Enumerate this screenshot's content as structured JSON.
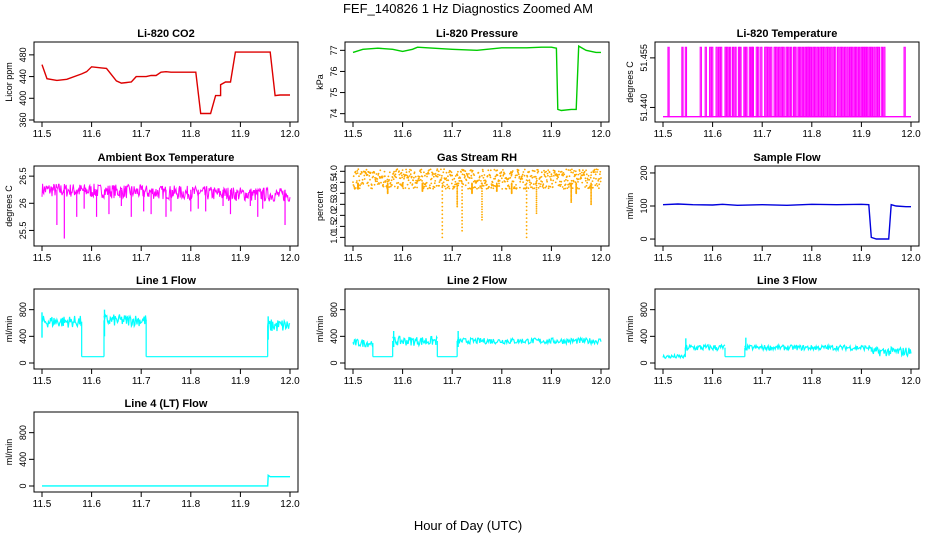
{
  "title": "FEF_140826  1 Hz Diagnostics Zoomed AM",
  "xlabel": "Hour of Day (UTC)",
  "chart_data": [
    {
      "type": "line",
      "title": "Li-820 CO2",
      "ylabel": "Licor ppm",
      "xlim": [
        11.5,
        12.0
      ],
      "ylim": [
        360,
        500
      ],
      "xticks": [
        "11.5",
        "11.6",
        "11.7",
        "11.8",
        "11.9",
        "12.0"
      ],
      "yticks": [
        "360",
        "400",
        "440",
        "480"
      ],
      "color": "#dd0000",
      "series": [
        {
          "x": [
            11.5,
            11.51,
            11.53,
            11.55,
            11.58,
            11.59,
            11.6,
            11.62,
            11.63,
            11.65,
            11.66,
            11.68,
            11.69,
            11.71,
            11.72,
            11.73,
            11.74,
            11.75,
            11.76,
            11.77,
            11.78,
            11.81,
            11.82,
            11.83,
            11.84,
            11.85,
            11.86,
            11.86,
            11.87,
            11.88,
            11.89,
            11.9,
            11.93,
            11.95,
            11.96,
            11.97,
            11.98,
            12.0
          ],
          "y": [
            462,
            436,
            433,
            435,
            445,
            449,
            458,
            456,
            455,
            432,
            428,
            430,
            440,
            440,
            442,
            442,
            448,
            449,
            448,
            448,
            448,
            448,
            372,
            372,
            372,
            405,
            405,
            425,
            430,
            430,
            485,
            485,
            485,
            485,
            485,
            405,
            406,
            406
          ]
        }
      ]
    },
    {
      "type": "line",
      "title": "Li-820 Pressure",
      "ylabel": "kPa",
      "xlim": [
        11.5,
        12.0
      ],
      "ylim": [
        73.7,
        77.3
      ],
      "xticks": [
        "11.5",
        "11.6",
        "11.7",
        "11.8",
        "11.9",
        "12.0"
      ],
      "yticks": [
        "74",
        "75",
        "76",
        "77"
      ],
      "color": "#00cc00",
      "series": [
        {
          "x": [
            11.5,
            11.52,
            11.55,
            11.58,
            11.6,
            11.62,
            11.63,
            11.65,
            11.7,
            11.75,
            11.8,
            11.85,
            11.88,
            11.9,
            11.91,
            11.913,
            11.92,
            11.94,
            11.95,
            11.955,
            11.97,
            11.99,
            12.0
          ],
          "y": [
            76.9,
            77.05,
            77.1,
            77.05,
            76.95,
            77.05,
            77.15,
            77.12,
            77.05,
            77.0,
            77.12,
            77.12,
            77.15,
            77.15,
            77.1,
            74.2,
            74.15,
            74.2,
            74.2,
            77.2,
            77.0,
            76.9,
            76.9
          ]
        }
      ]
    },
    {
      "type": "line",
      "title": "Li-820 Temperature",
      "ylabel": "degrees C",
      "xlim": [
        11.5,
        12.0
      ],
      "ylim": [
        51.4362,
        51.4592
      ],
      "xticks": [
        "11.5",
        "11.6",
        "11.7",
        "11.8",
        "11.9",
        "12.0"
      ],
      "yticks": [
        "51.440",
        "51.455"
      ],
      "color": "#ff00ff",
      "low": 51.4372,
      "high": 51.4582,
      "spikes": [
        11.51,
        11.538,
        11.545,
        11.575,
        11.585,
        11.594,
        11.598,
        11.607,
        11.612,
        11.616,
        11.625,
        11.629,
        11.634,
        11.64,
        11.645,
        11.652,
        11.655,
        11.663,
        11.667,
        11.674,
        11.678,
        11.68,
        11.688,
        11.691,
        11.697,
        11.705,
        11.708,
        11.712,
        11.717,
        11.724,
        11.728,
        11.733,
        11.738,
        11.742,
        11.748,
        11.752,
        11.757,
        11.763,
        11.766,
        11.772,
        11.776,
        11.781,
        11.786,
        11.79,
        11.793,
        11.797,
        11.802,
        11.806,
        11.811,
        11.816,
        11.82,
        11.824,
        11.829,
        11.833,
        11.838,
        11.843,
        11.846,
        11.852,
        11.857,
        11.861,
        11.866,
        11.871,
        11.876,
        11.88,
        11.885,
        11.889,
        11.894,
        11.899,
        11.903,
        11.907,
        11.911,
        11.916,
        11.92,
        11.925,
        11.93,
        11.934,
        11.94,
        11.945,
        11.986
      ]
    },
    {
      "type": "line",
      "title": "Ambient Box Temperature",
      "ylabel": "degrees C",
      "xlim": [
        11.5,
        12.0
      ],
      "ylim": [
        25.25,
        26.65
      ],
      "xticks": [
        "11.5",
        "11.6",
        "11.7",
        "11.8",
        "11.9",
        "12.0"
      ],
      "yticks": [
        "25.5",
        "26",
        "26.5"
      ],
      "color": "#ff00ff",
      "band": {
        "base": 26.25,
        "end": 26.15,
        "width": 0.13
      },
      "dips": [
        [
          11.53,
          25.6
        ],
        [
          11.545,
          25.35
        ],
        [
          11.57,
          25.75
        ],
        [
          11.585,
          25.9
        ],
        [
          11.61,
          25.75
        ],
        [
          11.635,
          25.8
        ],
        [
          11.66,
          25.95
        ],
        [
          11.68,
          25.75
        ],
        [
          11.705,
          25.85
        ],
        [
          11.72,
          25.8
        ],
        [
          11.75,
          25.75
        ],
        [
          11.76,
          25.85
        ],
        [
          11.8,
          25.85
        ],
        [
          11.815,
          25.9
        ],
        [
          11.83,
          25.85
        ],
        [
          11.865,
          25.95
        ],
        [
          11.88,
          25.8
        ],
        [
          11.92,
          25.95
        ],
        [
          11.935,
          25.75
        ],
        [
          11.945,
          25.9
        ],
        [
          11.99,
          25.6
        ]
      ]
    },
    {
      "type": "scatter",
      "title": "Gas Stream RH",
      "ylabel": "percent",
      "xlim": [
        11.5,
        12.0
      ],
      "ylim": [
        0.7,
        4.15
      ],
      "xticks": [
        "11.5",
        "11.6",
        "11.7",
        "11.8",
        "11.9",
        "12.0"
      ],
      "yticks": [
        "1.0",
        "1.5",
        "2.0",
        "2.5",
        "3.0",
        "3.5",
        "4.0"
      ],
      "color": "#ffaa00",
      "band": {
        "center": 3.65,
        "width": 0.45
      },
      "dips": [
        [
          11.51,
          3.2
        ],
        [
          11.57,
          3.0
        ],
        [
          11.6,
          3.3
        ],
        [
          11.64,
          3.1
        ],
        [
          11.68,
          1.0
        ],
        [
          11.71,
          2.4
        ],
        [
          11.72,
          1.3
        ],
        [
          11.74,
          3.0
        ],
        [
          11.76,
          1.8
        ],
        [
          11.79,
          3.1
        ],
        [
          11.82,
          3.0
        ],
        [
          11.85,
          1.0
        ],
        [
          11.87,
          2.1
        ],
        [
          11.94,
          2.6
        ],
        [
          11.95,
          3.0
        ],
        [
          11.98,
          2.5
        ]
      ]
    },
    {
      "type": "line",
      "title": "Sample Flow",
      "ylabel": "ml/min",
      "xlim": [
        11.5,
        12.0
      ],
      "ylim": [
        -15,
        215
      ],
      "xticks": [
        "11.5",
        "11.6",
        "11.7",
        "11.8",
        "11.9",
        "12.0"
      ],
      "yticks": [
        "0",
        "100",
        "200"
      ],
      "color": "#0000dd",
      "series": [
        {
          "x": [
            11.5,
            11.53,
            11.56,
            11.6,
            11.62,
            11.65,
            11.7,
            11.75,
            11.8,
            11.85,
            11.9,
            11.915,
            11.92,
            11.93,
            11.955,
            11.96,
            11.97,
            11.99,
            12.0
          ],
          "y": [
            104,
            106,
            104,
            103,
            105,
            102,
            104,
            102,
            105,
            104,
            105,
            104,
            5,
            0,
            0,
            104,
            100,
            98,
            98
          ]
        }
      ]
    },
    {
      "type": "line",
      "title": "Line 1 Flow",
      "ylabel": "ml/min",
      "xlim": [
        11.5,
        12.0
      ],
      "ylim": [
        -60,
        1080
      ],
      "xticks": [
        "11.5",
        "11.6",
        "11.7",
        "11.8",
        "11.9",
        "12.0"
      ],
      "yticks": [
        "0",
        "400",
        "800"
      ],
      "color": "#00ffff",
      "segments": [
        [
          11.5,
          11.58,
          620,
          90
        ],
        [
          11.58,
          11.625,
          95,
          0
        ],
        [
          11.625,
          11.71,
          640,
          90
        ],
        [
          11.71,
          11.955,
          95,
          0
        ],
        [
          11.955,
          12.0,
          560,
          100
        ]
      ],
      "spikes": [
        [
          11.5,
          760
        ],
        [
          11.626,
          800
        ],
        [
          11.956,
          700
        ]
      ]
    },
    {
      "type": "line",
      "title": "Line 2 Flow",
      "ylabel": "ml/min",
      "xlim": [
        11.5,
        12.0
      ],
      "ylim": [
        -60,
        1080
      ],
      "xticks": [
        "11.5",
        "11.6",
        "11.7",
        "11.8",
        "11.9",
        "12.0"
      ],
      "yticks": [
        "0",
        "400",
        "800"
      ],
      "color": "#00ffff",
      "segments": [
        [
          11.5,
          11.54,
          300,
          60
        ],
        [
          11.54,
          11.58,
          95,
          0
        ],
        [
          11.58,
          11.67,
          330,
          70
        ],
        [
          11.67,
          11.71,
          95,
          0
        ],
        [
          11.71,
          12.0,
          330,
          45
        ]
      ],
      "spikes": [
        [
          11.582,
          480
        ],
        [
          11.712,
          480
        ]
      ]
    },
    {
      "type": "line",
      "title": "Line 3 Flow",
      "ylabel": "ml/min",
      "xlim": [
        11.5,
        12.0
      ],
      "ylim": [
        -60,
        1080
      ],
      "xticks": [
        "11.5",
        "11.6",
        "11.7",
        "11.8",
        "11.9",
        "12.0"
      ],
      "yticks": [
        "0",
        "400",
        "800"
      ],
      "color": "#00ffff",
      "segments": [
        [
          11.5,
          11.545,
          95,
          30
        ],
        [
          11.545,
          11.625,
          230,
          50
        ],
        [
          11.625,
          11.665,
          95,
          0
        ],
        [
          11.665,
          11.92,
          230,
          40
        ],
        [
          11.92,
          12.0,
          170,
          70
        ]
      ],
      "spikes": [
        [
          11.546,
          370
        ],
        [
          11.667,
          380
        ]
      ]
    },
    {
      "type": "line",
      "title": "Line 4 (LT) Flow",
      "ylabel": "ml/min",
      "xlim": [
        11.5,
        12.0
      ],
      "ylim": [
        -60,
        1080
      ],
      "xticks": [
        "11.5",
        "11.6",
        "11.7",
        "11.8",
        "11.9",
        "12.0"
      ],
      "yticks": [
        "0",
        "400",
        "800"
      ],
      "color": "#00ffff",
      "series": [
        {
          "x": [
            11.5,
            11.955,
            11.956,
            11.96,
            11.97,
            12.0
          ],
          "y": [
            2,
            2,
            160,
            140,
            140,
            140
          ]
        }
      ]
    }
  ]
}
